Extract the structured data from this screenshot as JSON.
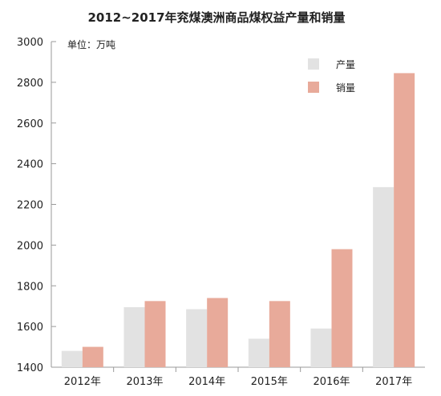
{
  "chart_data": {
    "type": "bar",
    "title": "2012~2017年兖煤澳洲商品煤权益产量和销量",
    "unit_label": "单位：万吨",
    "categories": [
      "2012年",
      "2013年",
      "2014年",
      "2015年",
      "2016年",
      "2017年"
    ],
    "series": [
      {
        "name": "产量",
        "color": "#e2e2e2",
        "values": [
          1480,
          1695,
          1685,
          1540,
          1590,
          2285
        ]
      },
      {
        "name": "销量",
        "color": "#e8aa9a",
        "values": [
          1500,
          1725,
          1740,
          1725,
          1980,
          2845
        ]
      }
    ],
    "ylim": [
      1400,
      3000
    ],
    "yticks": [
      1400,
      1600,
      1800,
      2000,
      2200,
      2400,
      2600,
      2800,
      3000
    ],
    "grid": false,
    "legend_position": "top-right"
  }
}
